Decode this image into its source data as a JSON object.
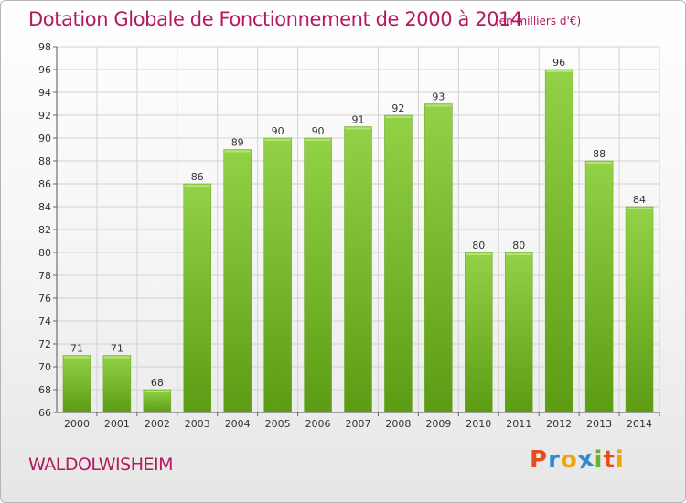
{
  "header": {
    "title": "Dotation Globale de Fonctionnement de 2000 à 2014",
    "subtitle": "(en milliers d'€)"
  },
  "footer": {
    "commune": "WALDOLWISHEIM",
    "logo_letters": [
      "P",
      "r",
      "o",
      "x",
      "i",
      "t",
      "i"
    ],
    "logo_colors": [
      "#e84d1c",
      "#2e8bd6",
      "#f0a30a",
      "#2e8bd6",
      "#66b32e",
      "#e84d1c",
      "#f0a30a"
    ]
  },
  "chart_data": {
    "type": "bar",
    "title": "Dotation Globale de Fonctionnement de 2000 à 2014",
    "subtitle": "(en milliers d'€)",
    "categories": [
      "2000",
      "2001",
      "2002",
      "2003",
      "2004",
      "2005",
      "2006",
      "2007",
      "2008",
      "2009",
      "2010",
      "2011",
      "2012",
      "2013",
      "2014"
    ],
    "values": [
      71,
      71,
      68,
      86,
      89,
      90,
      90,
      91,
      92,
      93,
      80,
      80,
      96,
      88,
      84
    ],
    "value_labels": [
      "71",
      "71",
      "68",
      "86",
      "89",
      "90",
      "90",
      "91",
      "92",
      "93",
      "80",
      "80",
      "96",
      "88",
      "84"
    ],
    "ylim": [
      66,
      98
    ],
    "yticks": [
      "66",
      "68",
      "70",
      "72",
      "74",
      "76",
      "78",
      "80",
      "82",
      "84",
      "86",
      "88",
      "90",
      "92",
      "94",
      "96",
      "98"
    ],
    "grid": true,
    "bar_color": "#7cc233",
    "bar_color_dark": "#5a9a12"
  }
}
